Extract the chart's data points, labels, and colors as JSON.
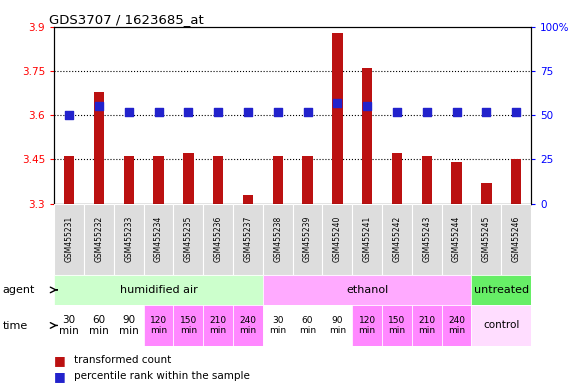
{
  "title": "GDS3707 / 1623685_at",
  "samples": [
    "GSM455231",
    "GSM455232",
    "GSM455233",
    "GSM455234",
    "GSM455235",
    "GSM455236",
    "GSM455237",
    "GSM455238",
    "GSM455239",
    "GSM455240",
    "GSM455241",
    "GSM455242",
    "GSM455243",
    "GSM455244",
    "GSM455245",
    "GSM455246"
  ],
  "bar_values": [
    3.46,
    3.68,
    3.46,
    3.46,
    3.47,
    3.46,
    3.33,
    3.46,
    3.46,
    3.88,
    3.76,
    3.47,
    3.46,
    3.44,
    3.37,
    3.45
  ],
  "dot_values": [
    50,
    55,
    52,
    52,
    52,
    52,
    52,
    52,
    52,
    57,
    55,
    52,
    52,
    52,
    52,
    52
  ],
  "ylim": [
    3.3,
    3.9
  ],
  "yticks_left": [
    3.3,
    3.45,
    3.6,
    3.75,
    3.9
  ],
  "yticks_right": [
    0,
    25,
    50,
    75,
    100
  ],
  "bar_color": "#bb1111",
  "dot_color": "#2222cc",
  "dot_size": 30,
  "agent_groups": [
    {
      "label": "humidified air",
      "start": 0,
      "end": 7,
      "color": "#ccffcc"
    },
    {
      "label": "ethanol",
      "start": 7,
      "end": 14,
      "color": "#ffaaff"
    },
    {
      "label": "untreated",
      "start": 14,
      "end": 16,
      "color": "#66ee66"
    }
  ],
  "time_labels": [
    "30\nmin",
    "60\nmin",
    "90\nmin",
    "120\nmin",
    "150\nmin",
    "210\nmin",
    "240\nmin",
    "30\nmin",
    "60\nmin",
    "90\nmin",
    "120\nmin",
    "150\nmin",
    "210\nmin",
    "240\nmin",
    "control",
    ""
  ],
  "time_colors_per_sample": [
    "#ffffff",
    "#ffffff",
    "#ffffff",
    "#ff88ff",
    "#ff88ff",
    "#ff88ff",
    "#ff88ff",
    "#ffffff",
    "#ffffff",
    "#ffffff",
    "#ff88ff",
    "#ff88ff",
    "#ff88ff",
    "#ff88ff",
    "#ffddff",
    "#ffddff"
  ],
  "time_row_label": "time",
  "agent_row_label": "agent",
  "legend_red": "transformed count",
  "legend_blue": "percentile rank within the sample",
  "grid_yticks": [
    3.45,
    3.6,
    3.75
  ],
  "sample_bg": "#dddddd"
}
